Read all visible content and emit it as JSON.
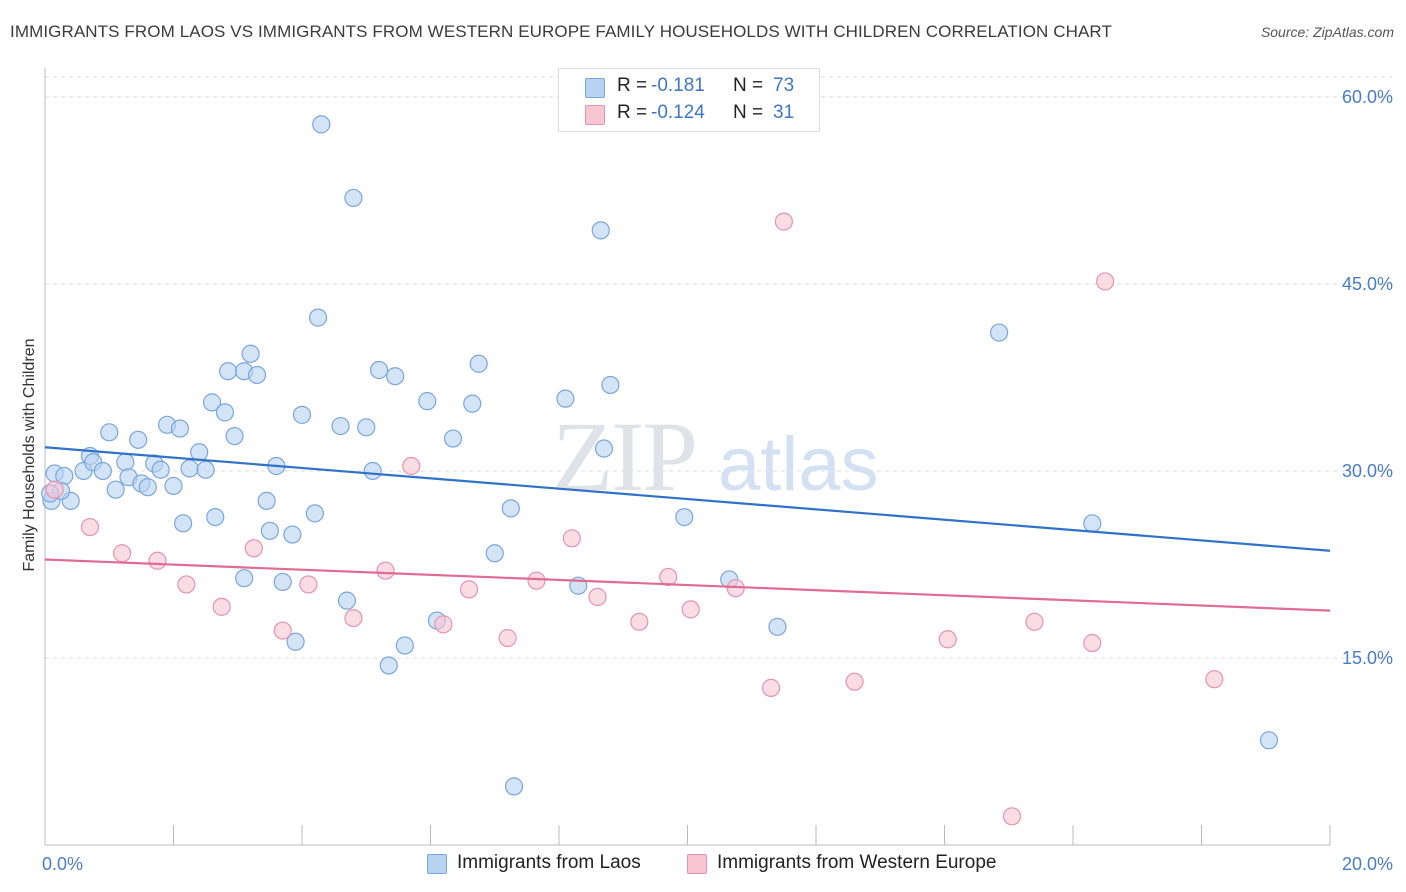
{
  "header": {
    "title": "IMMIGRANTS FROM LAOS VS IMMIGRANTS FROM WESTERN EUROPE FAMILY HOUSEHOLDS WITH CHILDREN CORRELATION CHART",
    "source": "Source: ZipAtlas.com"
  },
  "watermark": {
    "zip": "ZIP",
    "atlas": "atlas"
  },
  "legend": {
    "r_label": "R =",
    "n_label": "N =",
    "rows": [
      {
        "r": "-0.181",
        "n": "73"
      },
      {
        "r": "-0.124",
        "n": "31"
      }
    ]
  },
  "colors": {
    "laos_fill": "#b8d2f2",
    "laos_stroke": "#7aa6dc",
    "laos_line": "#2f72c8",
    "we_fill": "#f7c5d4",
    "we_stroke": "#e793ad",
    "we_line": "#e06b93",
    "grid": "#dcdcdc",
    "tick_text": "#4a7cc9"
  },
  "chart_data": {
    "type": "scatter",
    "title": "IMMIGRANTS FROM LAOS VS IMMIGRANTS FROM WESTERN EUROPE FAMILY HOUSEHOLDS WITH CHILDREN CORRELATION CHART",
    "xlabel": "",
    "ylabel": "Family Households with Children",
    "xlim": [
      0,
      20
    ],
    "ylim": [
      0,
      62
    ],
    "x_tick_labels": [
      "0.0%",
      "20.0%"
    ],
    "y_ticks": [
      15,
      30,
      45,
      60
    ],
    "y_tick_labels": [
      "15.0%",
      "30.0%",
      "45.0%",
      "60.0%"
    ],
    "grid": true,
    "legend_position": "top-center",
    "series": [
      {
        "name": "Immigrants from Laos",
        "trend": {
          "x": [
            0,
            20
          ],
          "y": [
            31.9,
            23.6
          ]
        },
        "points": [
          [
            0.1,
            27.6
          ],
          [
            0.15,
            29.8
          ],
          [
            0.3,
            29.6
          ],
          [
            0.4,
            27.6
          ],
          [
            0.25,
            28.4
          ],
          [
            0.6,
            30.0
          ],
          [
            0.7,
            31.2
          ],
          [
            0.75,
            30.7
          ],
          [
            0.9,
            30.0
          ],
          [
            1.0,
            33.1
          ],
          [
            1.1,
            28.5
          ],
          [
            1.25,
            30.7
          ],
          [
            1.3,
            29.5
          ],
          [
            1.45,
            32.5
          ],
          [
            1.5,
            29.0
          ],
          [
            1.6,
            28.7
          ],
          [
            1.7,
            30.6
          ],
          [
            1.8,
            30.1
          ],
          [
            1.9,
            33.7
          ],
          [
            2.0,
            28.8
          ],
          [
            2.1,
            33.4
          ],
          [
            2.15,
            25.8
          ],
          [
            2.25,
            30.2
          ],
          [
            2.4,
            31.5
          ],
          [
            2.5,
            30.1
          ],
          [
            2.6,
            35.5
          ],
          [
            2.65,
            26.3
          ],
          [
            2.8,
            34.7
          ],
          [
            2.85,
            38.0
          ],
          [
            2.95,
            32.8
          ],
          [
            3.1,
            38.0
          ],
          [
            3.1,
            21.4
          ],
          [
            3.2,
            39.4
          ],
          [
            3.3,
            37.7
          ],
          [
            3.45,
            27.6
          ],
          [
            3.5,
            25.2
          ],
          [
            3.6,
            30.4
          ],
          [
            3.7,
            21.1
          ],
          [
            3.85,
            24.9
          ],
          [
            3.9,
            16.3
          ],
          [
            4.0,
            34.5
          ],
          [
            4.2,
            26.6
          ],
          [
            4.25,
            42.3
          ],
          [
            4.3,
            57.8
          ],
          [
            4.6,
            33.6
          ],
          [
            4.7,
            19.6
          ],
          [
            4.8,
            51.9
          ],
          [
            5.0,
            33.5
          ],
          [
            5.1,
            30.0
          ],
          [
            5.2,
            38.1
          ],
          [
            5.35,
            14.4
          ],
          [
            5.45,
            37.6
          ],
          [
            5.6,
            16.0
          ],
          [
            5.95,
            35.6
          ],
          [
            6.1,
            18.0
          ],
          [
            6.35,
            32.6
          ],
          [
            6.65,
            35.4
          ],
          [
            6.75,
            38.6
          ],
          [
            7.0,
            23.4
          ],
          [
            7.25,
            27.0
          ],
          [
            7.3,
            4.7
          ],
          [
            8.1,
            35.8
          ],
          [
            8.3,
            20.8
          ],
          [
            8.65,
            49.3
          ],
          [
            8.7,
            31.8
          ],
          [
            8.8,
            36.9
          ],
          [
            9.95,
            26.3
          ],
          [
            10.65,
            21.3
          ],
          [
            11.4,
            17.5
          ],
          [
            14.85,
            41.1
          ],
          [
            16.3,
            25.8
          ],
          [
            19.05,
            8.4
          ],
          [
            0.08,
            28.2
          ]
        ]
      },
      {
        "name": "Immigrants from Western Europe",
        "trend": {
          "x": [
            0,
            20
          ],
          "y": [
            22.9,
            18.8
          ]
        },
        "points": [
          [
            0.15,
            28.5
          ],
          [
            0.7,
            25.5
          ],
          [
            1.2,
            23.4
          ],
          [
            1.75,
            22.8
          ],
          [
            2.2,
            20.9
          ],
          [
            2.75,
            19.1
          ],
          [
            3.25,
            23.8
          ],
          [
            3.7,
            17.2
          ],
          [
            4.1,
            20.9
          ],
          [
            4.8,
            18.2
          ],
          [
            5.3,
            22.0
          ],
          [
            5.7,
            30.4
          ],
          [
            6.2,
            17.7
          ],
          [
            6.6,
            20.5
          ],
          [
            7.2,
            16.6
          ],
          [
            7.65,
            21.2
          ],
          [
            8.2,
            24.6
          ],
          [
            8.6,
            19.9
          ],
          [
            9.25,
            17.9
          ],
          [
            9.7,
            21.5
          ],
          [
            10.05,
            18.9
          ],
          [
            10.75,
            20.6
          ],
          [
            11.3,
            12.6
          ],
          [
            11.5,
            50.0
          ],
          [
            12.6,
            13.1
          ],
          [
            14.05,
            16.5
          ],
          [
            15.05,
            2.3
          ],
          [
            15.4,
            17.9
          ],
          [
            16.3,
            16.2
          ],
          [
            16.5,
            45.2
          ],
          [
            18.2,
            13.3
          ]
        ]
      }
    ]
  }
}
